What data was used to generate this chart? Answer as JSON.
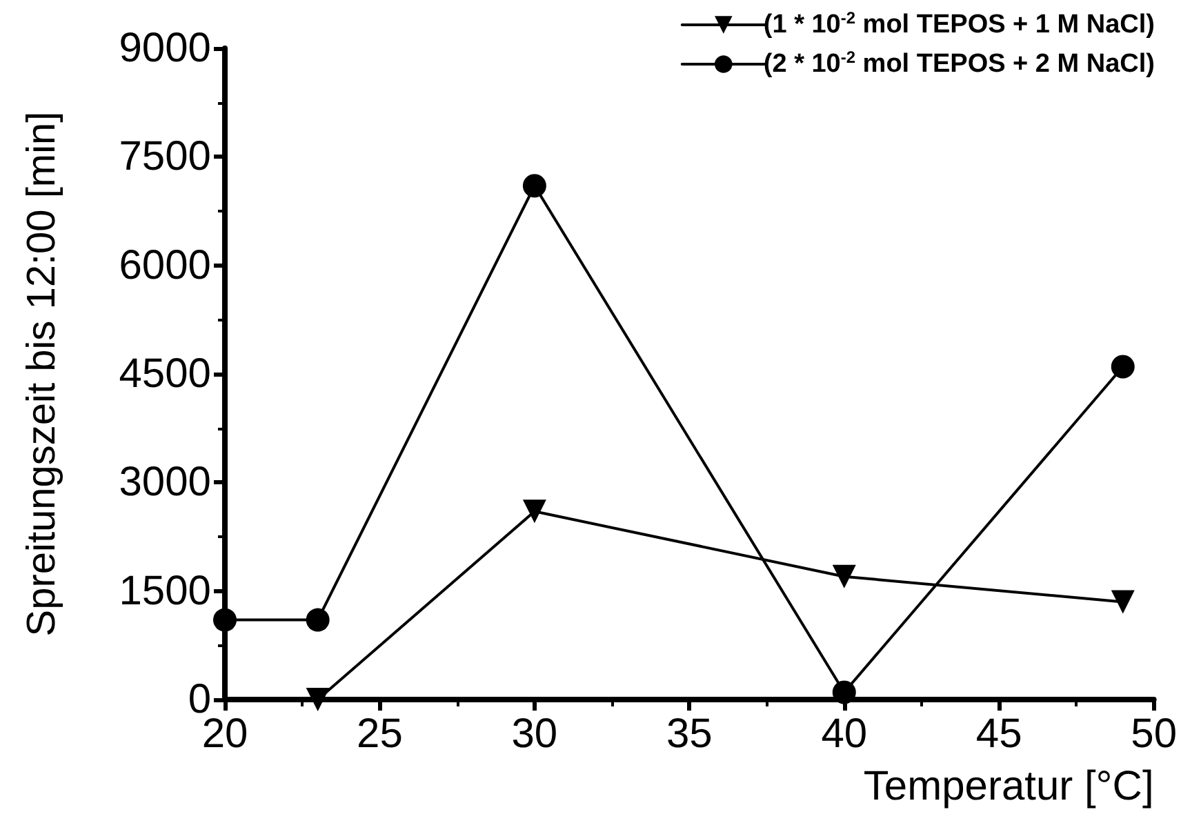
{
  "chart_data": {
    "type": "line",
    "xlabel": "Temperatur [°C]",
    "ylabel": "Spreitungszeit bis 12:00 [min]",
    "xlim": [
      20,
      50
    ],
    "xticks": [
      20,
      25,
      30,
      35,
      40,
      45,
      50
    ],
    "ylim": [
      0,
      9000
    ],
    "yticks": [
      0,
      1500,
      3000,
      4500,
      6000,
      7500,
      9000
    ],
    "grid": false,
    "legend": "top right",
    "line_style": "solid",
    "series": [
      {
        "name": "(1 * 10$^{-2}$ mol TEPOS + 1 M NaCl)",
        "color": "#000000",
        "marker": "triangle",
        "x": [
          23,
          30,
          40,
          49
        ],
        "values": [
          0,
          2600,
          1700,
          1350
        ]
      },
      {
        "name": "(2 * 10$^{-2}$ mol TEPOS + 2 M NaCl)",
        "color": "#000000",
        "marker": "circle",
        "x": [
          20,
          23,
          30,
          40,
          49
        ],
        "values": [
          1100,
          1100,
          7100,
          100,
          4600
        ]
      }
    ]
  }
}
